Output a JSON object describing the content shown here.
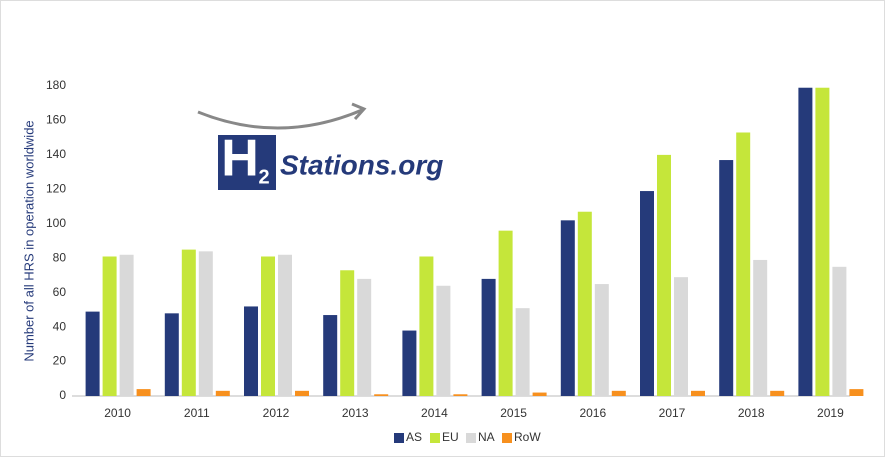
{
  "chart_data": {
    "type": "bar",
    "y_label": "Number of all HRS in operation worldwide",
    "categories": [
      "2010",
      "2011",
      "2012",
      "2013",
      "2014",
      "2015",
      "2016",
      "2017",
      "2018",
      "2019"
    ],
    "series": [
      {
        "name": "AS",
        "color": "#253a7a",
        "values": [
          49,
          48,
          52,
          47,
          38,
          68,
          102,
          119,
          137,
          179
        ]
      },
      {
        "name": "EU",
        "color": "#c5e63a",
        "values": [
          81,
          85,
          81,
          73,
          81,
          96,
          107,
          140,
          153,
          179
        ]
      },
      {
        "name": "NA",
        "color": "#d9d9d9",
        "values": [
          82,
          84,
          82,
          68,
          64,
          51,
          65,
          69,
          79,
          75
        ]
      },
      {
        "name": "RoW",
        "color": "#f7901e",
        "values": [
          4,
          3,
          3,
          1,
          1,
          2,
          3,
          3,
          3,
          4
        ]
      }
    ],
    "ylim": [
      0,
      180
    ],
    "yticks": [
      0,
      20,
      40,
      60,
      80,
      100,
      120,
      140,
      160,
      180
    ],
    "grid": false,
    "legend": "bottom",
    "logo": {
      "letter": "H",
      "subscript": "2",
      "text": "Stations.org"
    }
  }
}
